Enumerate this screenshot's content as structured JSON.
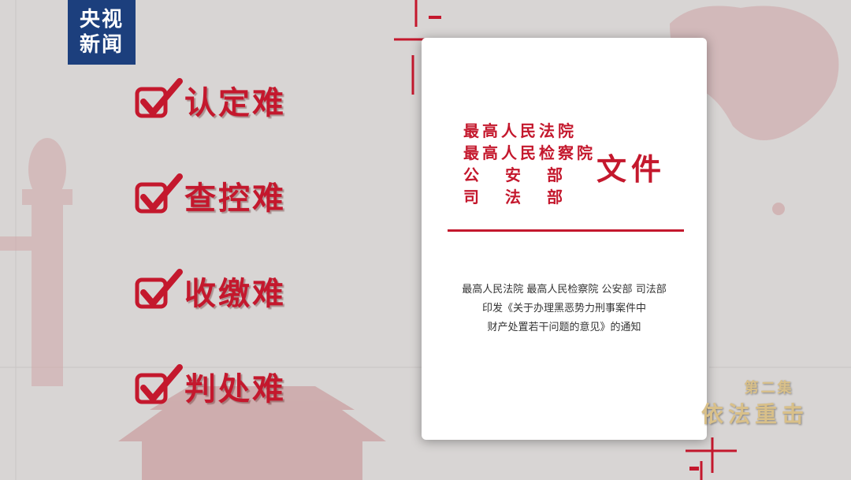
{
  "logo": {
    "line1": "央视",
    "line2": "新闻"
  },
  "difficulties": [
    "认定难",
    "查控难",
    "收缴难",
    "判处难"
  ],
  "document": {
    "issuers": [
      "最高人民法院",
      "最高人民检察院",
      "公安部",
      "司法部"
    ],
    "doc_word": "文件",
    "notice_lines": [
      "最高人民法院 最高人民检察院 公安部 司法部",
      "印发《关于办理黑恶势力刑事案件中",
      "财产处置若干问题的意见》的通知"
    ]
  },
  "episode": {
    "label": "第二集",
    "title": "依法重击"
  },
  "colors": {
    "accent_red": "#c4182d",
    "logo_blue": "#1c3f7d",
    "gold": "#d9c089"
  },
  "icons": {
    "check": "check-mark-icon"
  }
}
